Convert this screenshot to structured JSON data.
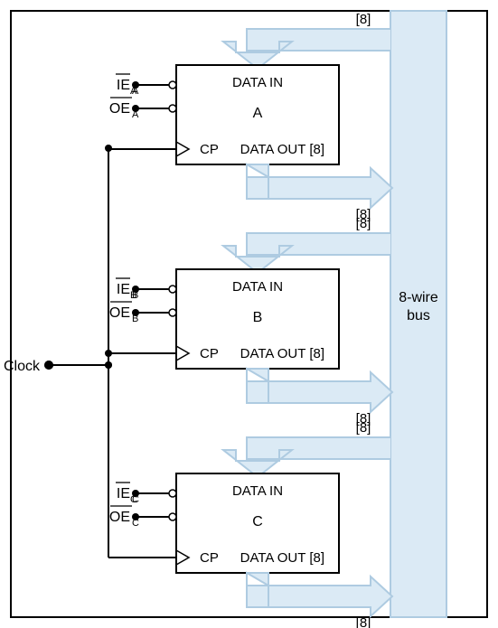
{
  "diagram": {
    "type": "network",
    "background_color": "#ffffff",
    "frame_color": "#000000",
    "arrow_fill": "#dbeaf5",
    "arrow_stroke": "#aecbe1",
    "bus_fill": "#dbeaf5",
    "bus_stroke": "#aecbe1",
    "font_family": "Arial",
    "clock_label": "Clock",
    "bus": {
      "label_line1": "8-wire",
      "label_line2": "bus",
      "label_fontsize": 16,
      "label_color": "#000000"
    },
    "registers": [
      {
        "id": "A",
        "ie_label": "IE",
        "ie_sub": "A",
        "oe_label": "OE",
        "oe_sub": "A",
        "cp_label": "CP",
        "data_in_label": "DATA IN",
        "data_out_label": "DATA OUT",
        "data_width": "[8]",
        "in_bus_label": "[8]",
        "out_bus_label": "[8]"
      },
      {
        "id": "B",
        "ie_label": "IE",
        "ie_sub": "B",
        "oe_label": "OE",
        "oe_sub": "B",
        "cp_label": "CP",
        "data_in_label": "DATA IN",
        "data_out_label": "DATA OUT",
        "data_width": "[8]",
        "in_bus_label": "[8]",
        "out_bus_label": "[8]"
      },
      {
        "id": "C",
        "ie_label": "IE",
        "ie_sub": "C",
        "oe_label": "OE",
        "oe_sub": "C",
        "cp_label": "CP",
        "data_in_label": "DATA IN",
        "data_out_label": "DATA OUT",
        "data_width": "[8]",
        "in_bus_label": "[8]",
        "out_bus_label": "[8]"
      }
    ],
    "label_fontsize": 16,
    "sub_fontsize": 11,
    "register_box": {
      "fill": "#ffffff",
      "stroke": "#000000",
      "stroke_width": 2
    }
  }
}
